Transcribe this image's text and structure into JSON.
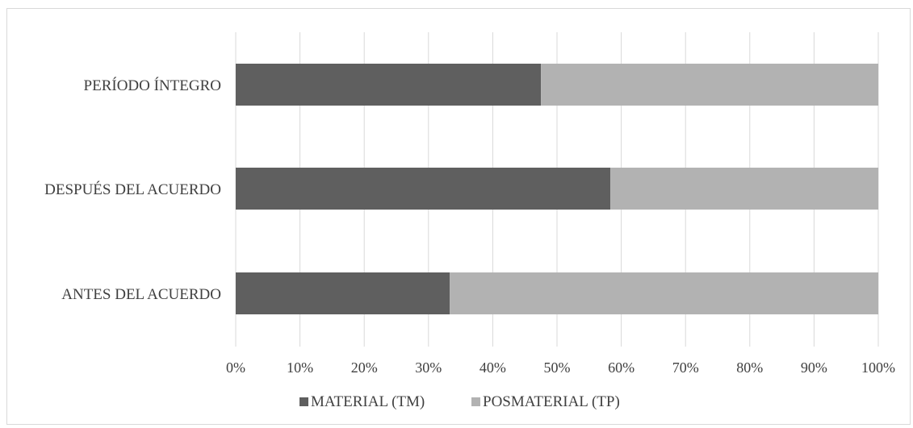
{
  "chart_data": {
    "type": "bar",
    "orientation": "horizontal",
    "stacked": "percent",
    "categories": [
      "ANTES DEL ACUERDO",
      "DESPUÉS DEL ACUERDO",
      "PERÍODO ÍNTEGRO"
    ],
    "series": [
      {
        "name": "MATERIAL (TM)",
        "values": [
          0.333,
          0.583,
          0.475
        ],
        "color": "#5f5f5f"
      },
      {
        "name": "POSMATERIAL (TP)",
        "values": [
          0.667,
          0.417,
          0.525
        ],
        "color": "#b2b2b2"
      }
    ],
    "xlim": [
      0,
      1
    ],
    "x_ticks": [
      "0%",
      "10%",
      "20%",
      "30%",
      "40%",
      "50%",
      "60%",
      "70%",
      "80%",
      "90%",
      "100%"
    ],
    "grid": true,
    "legend_position": "bottom",
    "title": "",
    "xlabel": "",
    "ylabel": ""
  }
}
